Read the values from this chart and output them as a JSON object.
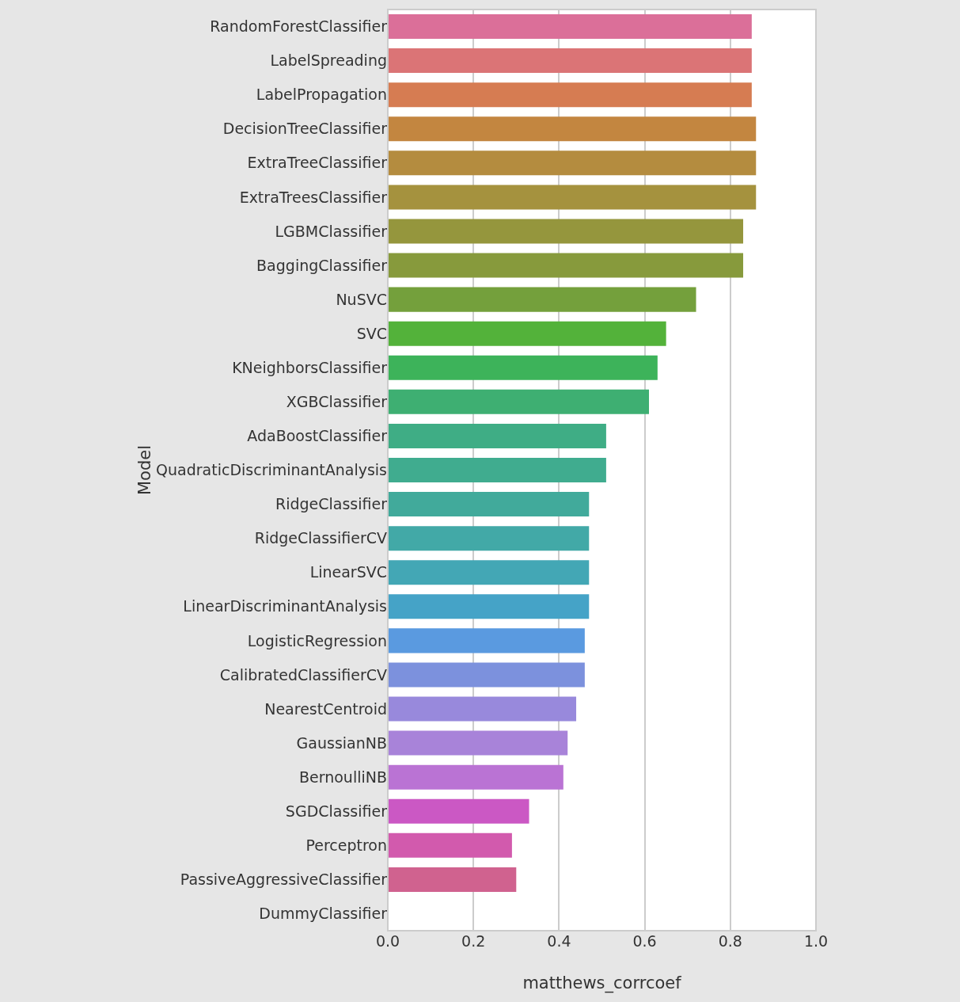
{
  "chart_data": {
    "type": "bar",
    "orientation": "horizontal",
    "xlabel": "matthews_corrcoef",
    "ylabel": "Model",
    "categories": [
      "RandomForestClassifier",
      "LabelSpreading",
      "LabelPropagation",
      "DecisionTreeClassifier",
      "ExtraTreeClassifier",
      "ExtraTreesClassifier",
      "LGBMClassifier",
      "BaggingClassifier",
      "NuSVC",
      "SVC",
      "KNeighborsClassifier",
      "XGBClassifier",
      "AdaBoostClassifier",
      "QuadraticDiscriminantAnalysis",
      "RidgeClassifier",
      "RidgeClassifierCV",
      "LinearSVC",
      "LinearDiscriminantAnalysis",
      "LogisticRegression",
      "CalibratedClassifierCV",
      "NearestCentroid",
      "GaussianNB",
      "BernoulliNB",
      "SGDClassifier",
      "Perceptron",
      "PassiveAggressiveClassifier",
      "DummyClassifier"
    ],
    "values": [
      0.85,
      0.85,
      0.85,
      0.86,
      0.86,
      0.86,
      0.83,
      0.83,
      0.72,
      0.65,
      0.63,
      0.61,
      0.51,
      0.51,
      0.47,
      0.47,
      0.47,
      0.47,
      0.46,
      0.46,
      0.44,
      0.42,
      0.41,
      0.33,
      0.29,
      0.3,
      0
    ],
    "colors": [
      "#db6f99",
      "#db7476",
      "#d67c52",
      "#c38640",
      "#b48c3f",
      "#a5923e",
      "#95963d",
      "#879a3c",
      "#74a03c",
      "#53b23a",
      "#3db35a",
      "#3eaf72",
      "#3fad85",
      "#40ac8f",
      "#41aa9b",
      "#42a9a7",
      "#43a7b5",
      "#45a3c7",
      "#5a9ae0",
      "#7c91dd",
      "#9889dc",
      "#a883d9",
      "#ba73d4",
      "#cb58c4",
      "#d25aad",
      "#d0628f",
      "#d0658a"
    ],
    "xlim": [
      0,
      1
    ],
    "xticks": [
      {
        "value": 0,
        "label": "0.0"
      },
      {
        "value": 0.2,
        "label": "0.2"
      },
      {
        "value": 0.4,
        "label": "0.4"
      },
      {
        "value": 0.6,
        "label": "0.6"
      },
      {
        "value": 0.8,
        "label": "0.8"
      },
      {
        "value": 1,
        "label": "1.0"
      }
    ],
    "grid": "x"
  }
}
